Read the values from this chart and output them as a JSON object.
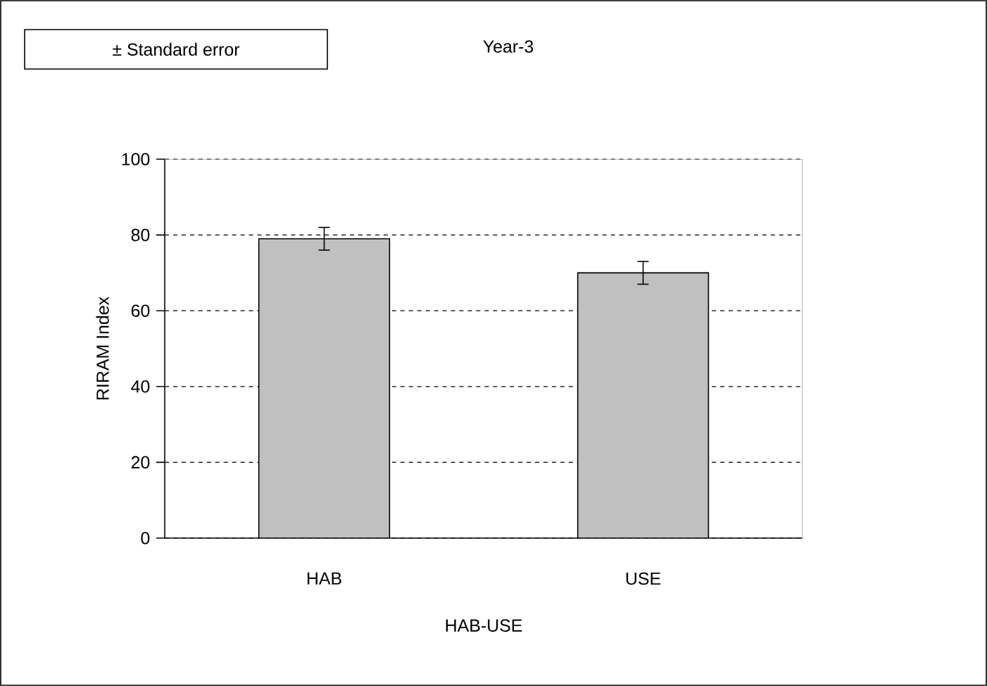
{
  "chart_data": {
    "type": "bar",
    "title": "Year-3",
    "xlabel": "HAB-USE",
    "ylabel": "RIRAM Index",
    "annotations": [
      "± Standard error"
    ],
    "categories": [
      "HAB",
      "USE"
    ],
    "values": [
      79,
      70
    ],
    "errors": [
      3,
      3
    ],
    "color": "#c0c0c0",
    "ylim": [
      0,
      100
    ],
    "yticks": [
      0,
      20,
      40,
      60,
      80,
      100
    ],
    "grid": "y"
  }
}
